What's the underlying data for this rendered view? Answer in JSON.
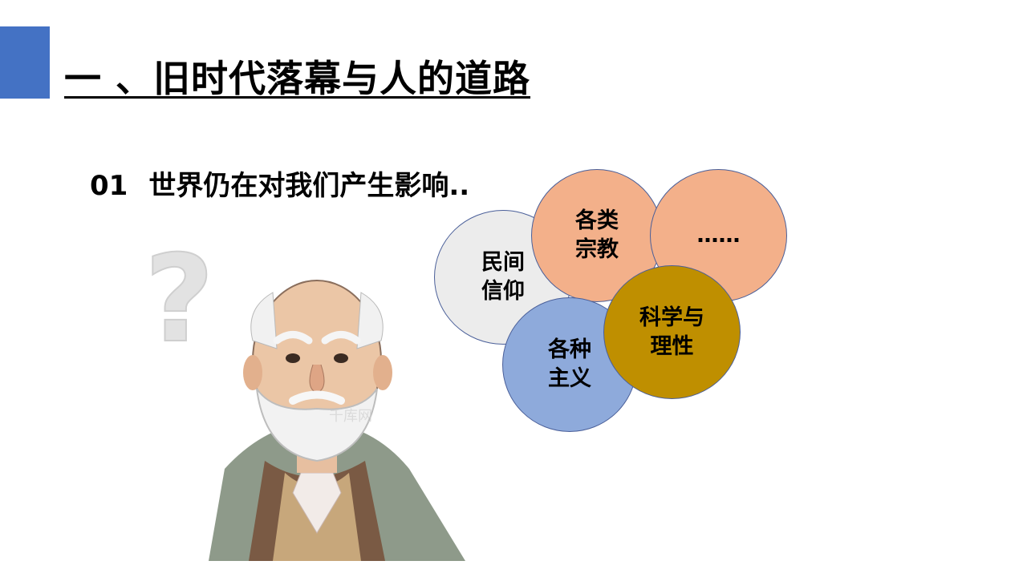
{
  "slide": {
    "title": "一 、旧时代落幕与人的道路",
    "subtitle_number": "01",
    "subtitle_text": "世界仍在对我们产生影响..",
    "accent_color": "#4472c4"
  },
  "bubbles": {
    "folk_belief": [
      "民间",
      "信仰"
    ],
    "religions": [
      "各类",
      "宗教"
    ],
    "etc": [
      "……"
    ],
    "isms": [
      "各种",
      "主义"
    ],
    "science": [
      "科学与",
      "理性"
    ]
  },
  "illustration": {
    "question_mark": "?",
    "watermark": "千库网"
  }
}
